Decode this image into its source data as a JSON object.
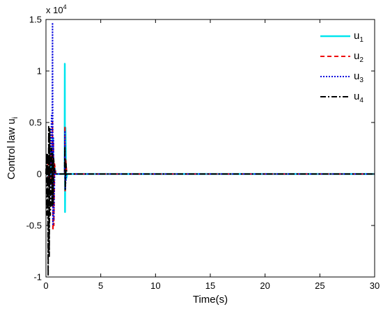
{
  "chart_data": {
    "type": "line",
    "xlabel": "Time(s)",
    "ylabel": "Control law u",
    "ylabel_subscript": "i",
    "y_multiplier": "x 10",
    "y_multiplier_exponent": "4",
    "xlim": [
      0,
      30
    ],
    "ylim": [
      -1,
      1.5
    ],
    "x_ticks": [
      0,
      5,
      10,
      15,
      20,
      25,
      30
    ],
    "y_ticks": [
      -1,
      -0.5,
      0,
      0.5,
      1,
      1.5
    ],
    "y_tick_labels": [
      "-1",
      "-0.5",
      "0",
      "0.5",
      "1",
      "1.5"
    ],
    "grid": false,
    "legend_position": "top-right",
    "series": [
      {
        "name": "u",
        "subscript": "1",
        "color": "#00e5ee",
        "dash": "solid",
        "width": 2.5,
        "points": [
          [
            0,
            0
          ],
          [
            0.2,
            0.05
          ],
          [
            0.3,
            -0.1
          ],
          [
            0.4,
            0.15
          ],
          [
            0.5,
            -0.05
          ],
          [
            0.62,
            0.35
          ],
          [
            0.66,
            -0.2
          ],
          [
            0.72,
            0.1
          ],
          [
            0.9,
            0
          ],
          [
            1.7,
            0
          ],
          [
            1.72,
            1.07
          ],
          [
            1.74,
            -0.37
          ],
          [
            1.78,
            0.45
          ],
          [
            1.84,
            -0.05
          ],
          [
            1.95,
            0
          ],
          [
            30,
            0
          ]
        ]
      },
      {
        "name": "u",
        "subscript": "2",
        "color": "#ee0000",
        "dash": "6,4",
        "width": 2,
        "points": [
          [
            0,
            0
          ],
          [
            0.2,
            0.1
          ],
          [
            0.3,
            -0.1
          ],
          [
            0.4,
            0.2
          ],
          [
            0.5,
            -0.1
          ],
          [
            0.6,
            0.5
          ],
          [
            0.64,
            -0.55
          ],
          [
            0.68,
            0.3
          ],
          [
            0.72,
            -0.5
          ],
          [
            0.78,
            0.1
          ],
          [
            0.9,
            0
          ],
          [
            1.7,
            0
          ],
          [
            1.73,
            0.46
          ],
          [
            1.75,
            -0.17
          ],
          [
            1.8,
            0.15
          ],
          [
            1.9,
            0
          ],
          [
            30,
            0
          ]
        ]
      },
      {
        "name": "u",
        "subscript": "3",
        "color": "#0000dd",
        "dash": "2,2",
        "width": 2,
        "points": [
          [
            0,
            0
          ],
          [
            0.2,
            0.05
          ],
          [
            0.3,
            -0.1
          ],
          [
            0.4,
            0.15
          ],
          [
            0.52,
            0.58
          ],
          [
            0.55,
            -0.3
          ],
          [
            0.6,
            1.47
          ],
          [
            0.64,
            -0.5
          ],
          [
            0.68,
            0.35
          ],
          [
            0.72,
            -0.45
          ],
          [
            0.8,
            0.05
          ],
          [
            0.9,
            0
          ],
          [
            1.7,
            0
          ],
          [
            1.73,
            0.42
          ],
          [
            1.76,
            -0.15
          ],
          [
            1.85,
            0
          ],
          [
            30,
            0
          ]
        ]
      },
      {
        "name": "u",
        "subscript": "4",
        "color": "#000000",
        "dash": "8,3,2,3",
        "width": 2,
        "points": [
          [
            0,
            0
          ],
          [
            0.05,
            0.2
          ],
          [
            0.1,
            -0.4
          ],
          [
            0.15,
            0.2
          ],
          [
            0.2,
            -0.99
          ],
          [
            0.25,
            0.46
          ],
          [
            0.3,
            -0.8
          ],
          [
            0.35,
            0.44
          ],
          [
            0.4,
            -0.4
          ],
          [
            0.5,
            0.25
          ],
          [
            0.55,
            -0.32
          ],
          [
            0.6,
            0.2
          ],
          [
            0.65,
            -0.3
          ],
          [
            0.7,
            0.15
          ],
          [
            0.8,
            0
          ],
          [
            1.7,
            0
          ],
          [
            1.73,
            0.27
          ],
          [
            1.76,
            -0.15
          ],
          [
            1.82,
            0.1
          ],
          [
            1.9,
            0
          ],
          [
            30,
            0
          ]
        ]
      }
    ]
  }
}
